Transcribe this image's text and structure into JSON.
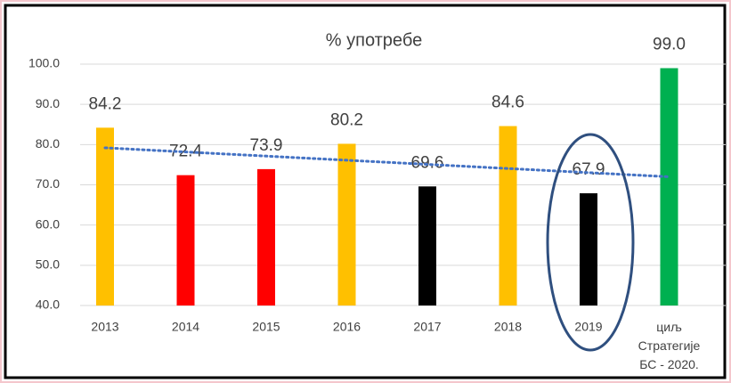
{
  "chart_data": {
    "type": "bar",
    "title": "% употребе",
    "categories": [
      "2013",
      "2014",
      "2015",
      "2016",
      "2017",
      "2018",
      "2019",
      "циљ\nСтратегије\nБС - 2020."
    ],
    "values": [
      84.2,
      72.4,
      73.9,
      80.2,
      69.6,
      84.6,
      67.9,
      99.0
    ],
    "value_labels": [
      "84.2",
      "72.4",
      "73.9",
      "80.2",
      "69.6",
      "84.6",
      "67.9",
      "99.0"
    ],
    "colors": [
      "#ffc000",
      "#ff0000",
      "#ff0000",
      "#ffc000",
      "#000000",
      "#ffc000",
      "#000000",
      "#00b050"
    ],
    "ylim": [
      40,
      100
    ],
    "yticks": [
      {
        "value": 40,
        "label": "40.0"
      },
      {
        "value": 50,
        "label": "50.0"
      },
      {
        "value": 60,
        "label": "60.0"
      },
      {
        "value": 70,
        "label": "70.0"
      },
      {
        "value": 80,
        "label": "80.0"
      },
      {
        "value": 90,
        "label": "90.0"
      },
      {
        "value": 100,
        "label": "100.0"
      }
    ],
    "grid": true,
    "trendline": {
      "color": "#4472c4",
      "style": "dotted"
    }
  }
}
